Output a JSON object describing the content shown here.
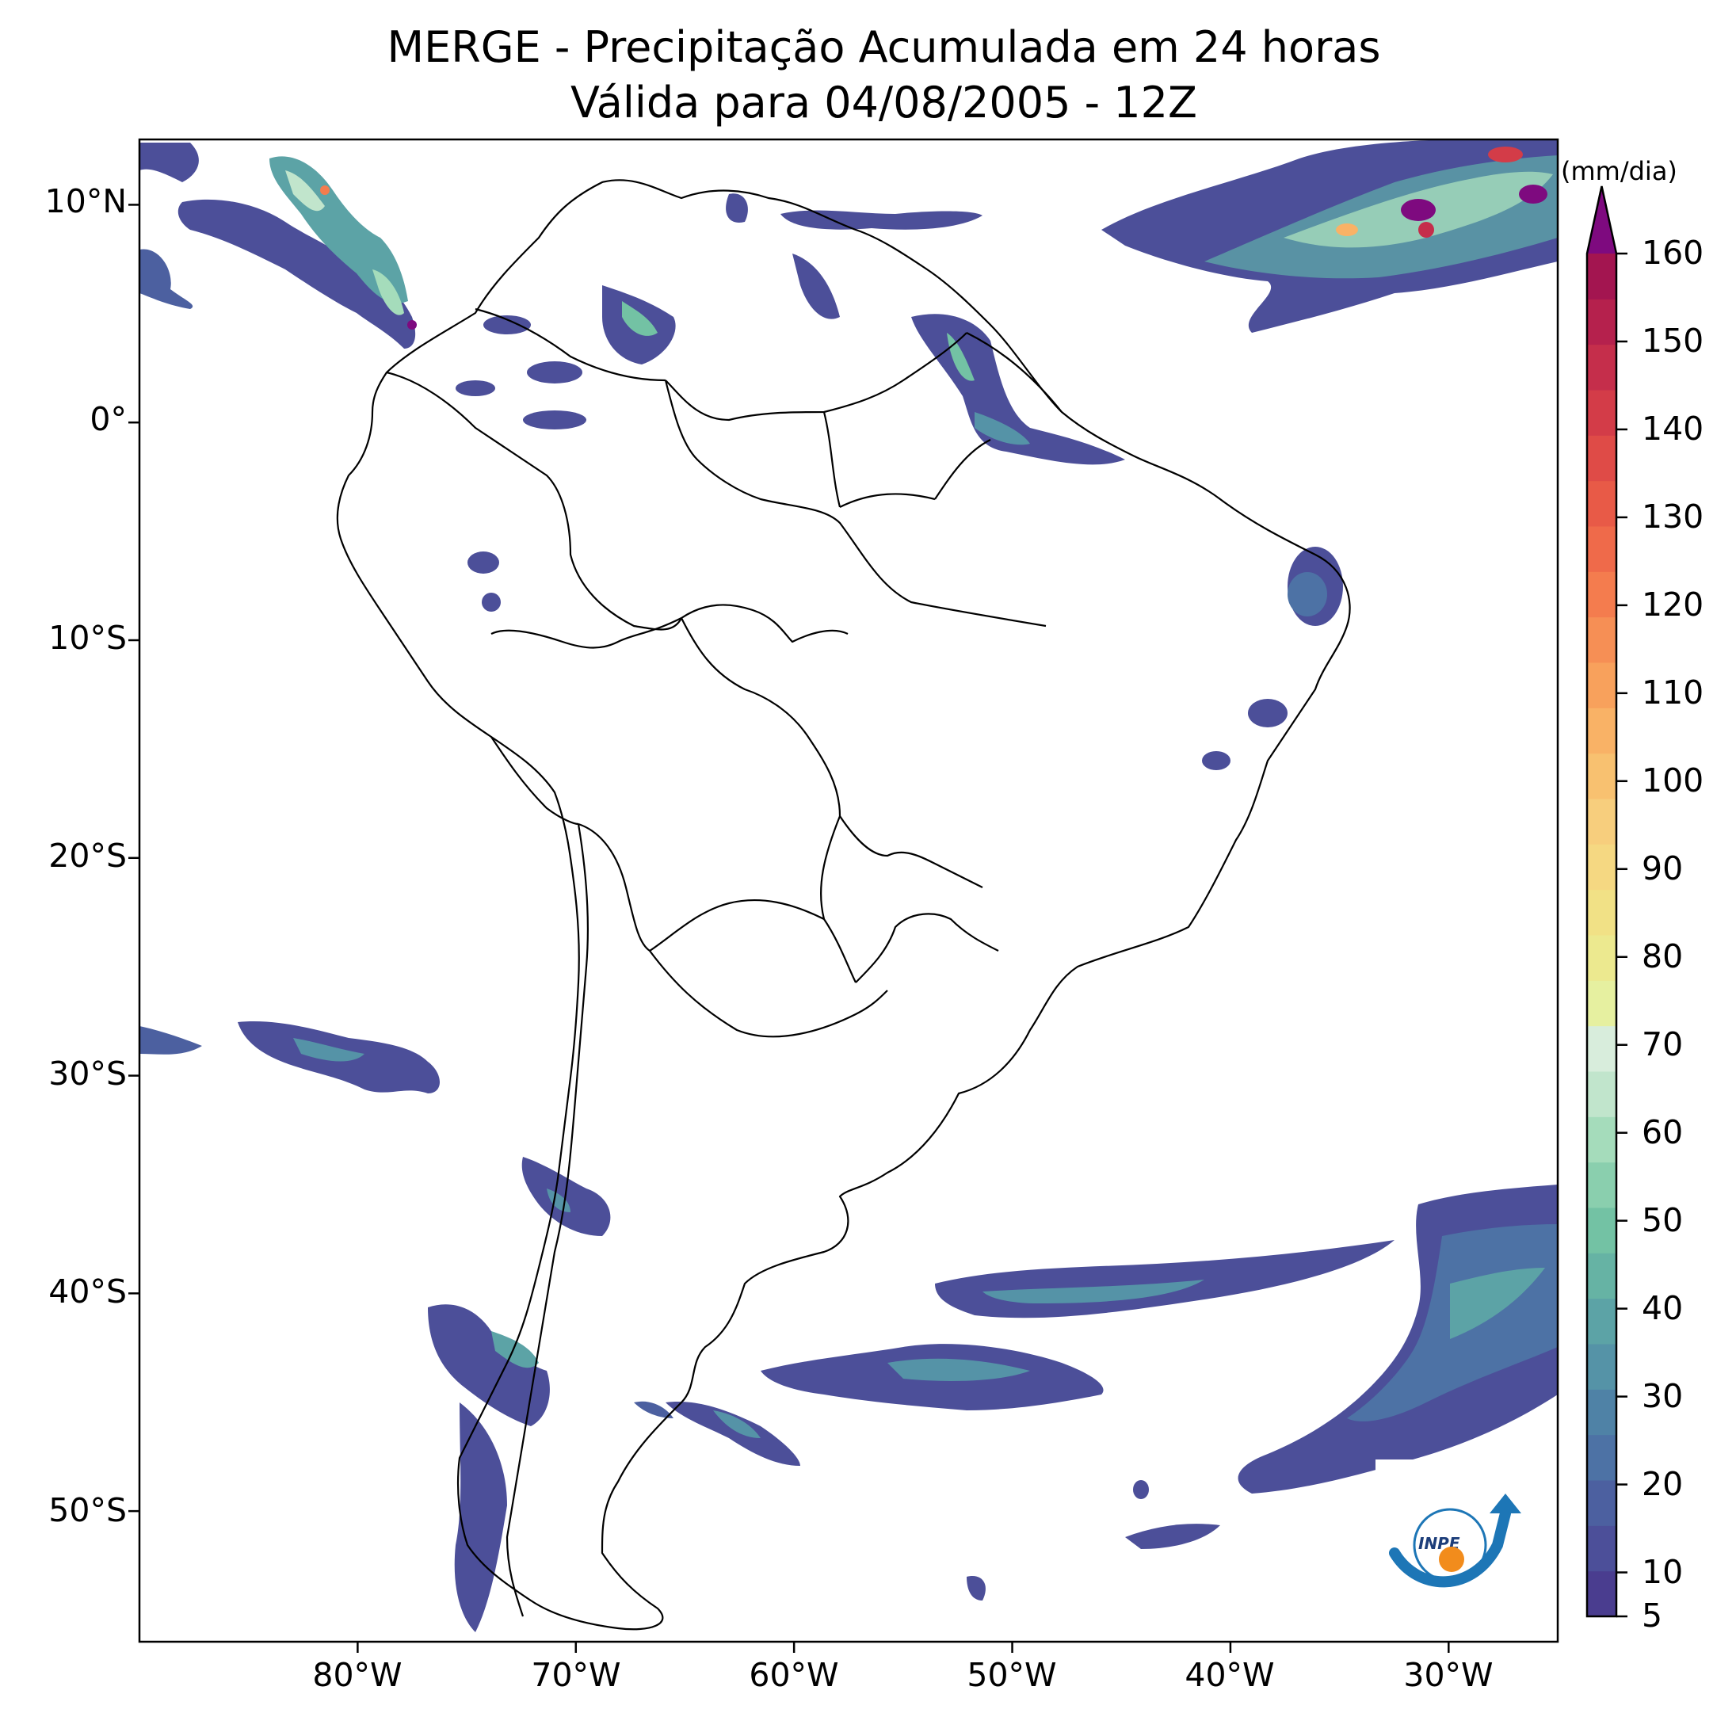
{
  "title_line1": "MERGE - Precipitação Acumulada em 24 horas",
  "title_line2": "Válida para 04/08/2005 - 12Z",
  "lat_labels": [
    "10°N",
    "0°",
    "10°S",
    "20°S",
    "30°S",
    "40°S",
    "50°S"
  ],
  "lon_labels": [
    "80°W",
    "70°W",
    "60°W",
    "50°W",
    "40°W",
    "30°W"
  ],
  "extent": {
    "lon_min": -90,
    "lon_max": -25,
    "lat_min": -56,
    "lat_max": 13
  },
  "colorbar": {
    "unit": "(mm/dia)",
    "tick_labels": [
      "5",
      "10",
      "20",
      "30",
      "40",
      "50",
      "60",
      "70",
      "80",
      "90",
      "100",
      "110",
      "120",
      "130",
      "140",
      "150",
      "160"
    ],
    "range": [
      5,
      160
    ],
    "levels": [
      5,
      10,
      15,
      20,
      25,
      30,
      35,
      40,
      45,
      50,
      55,
      60,
      65,
      70,
      75,
      80,
      85,
      90,
      95,
      100,
      105,
      110,
      115,
      120,
      125,
      130,
      135,
      140,
      145,
      150,
      155,
      160
    ],
    "colors": [
      "#4a3d8f",
      "#4c4f99",
      "#4c60a0",
      "#4d72a5",
      "#4f82a6",
      "#5593a7",
      "#5ca3a6",
      "#66b3a4",
      "#73c2a4",
      "#8acfae",
      "#a5dcbb",
      "#c1e5cc",
      "#d8eddc",
      "#e6f0a0",
      "#ece98f",
      "#f1e186",
      "#f5d882",
      "#f7ce7d",
      "#f8c170",
      "#f9b266",
      "#f8a15c",
      "#f68f55",
      "#f47c4e",
      "#ef6a4a",
      "#e85a47",
      "#df4b47",
      "#d33c48",
      "#c52e4b",
      "#b5214d",
      "#a31550"
    ],
    "extend_color": "#7e0a7f"
  },
  "logo_text": "INPE"
}
